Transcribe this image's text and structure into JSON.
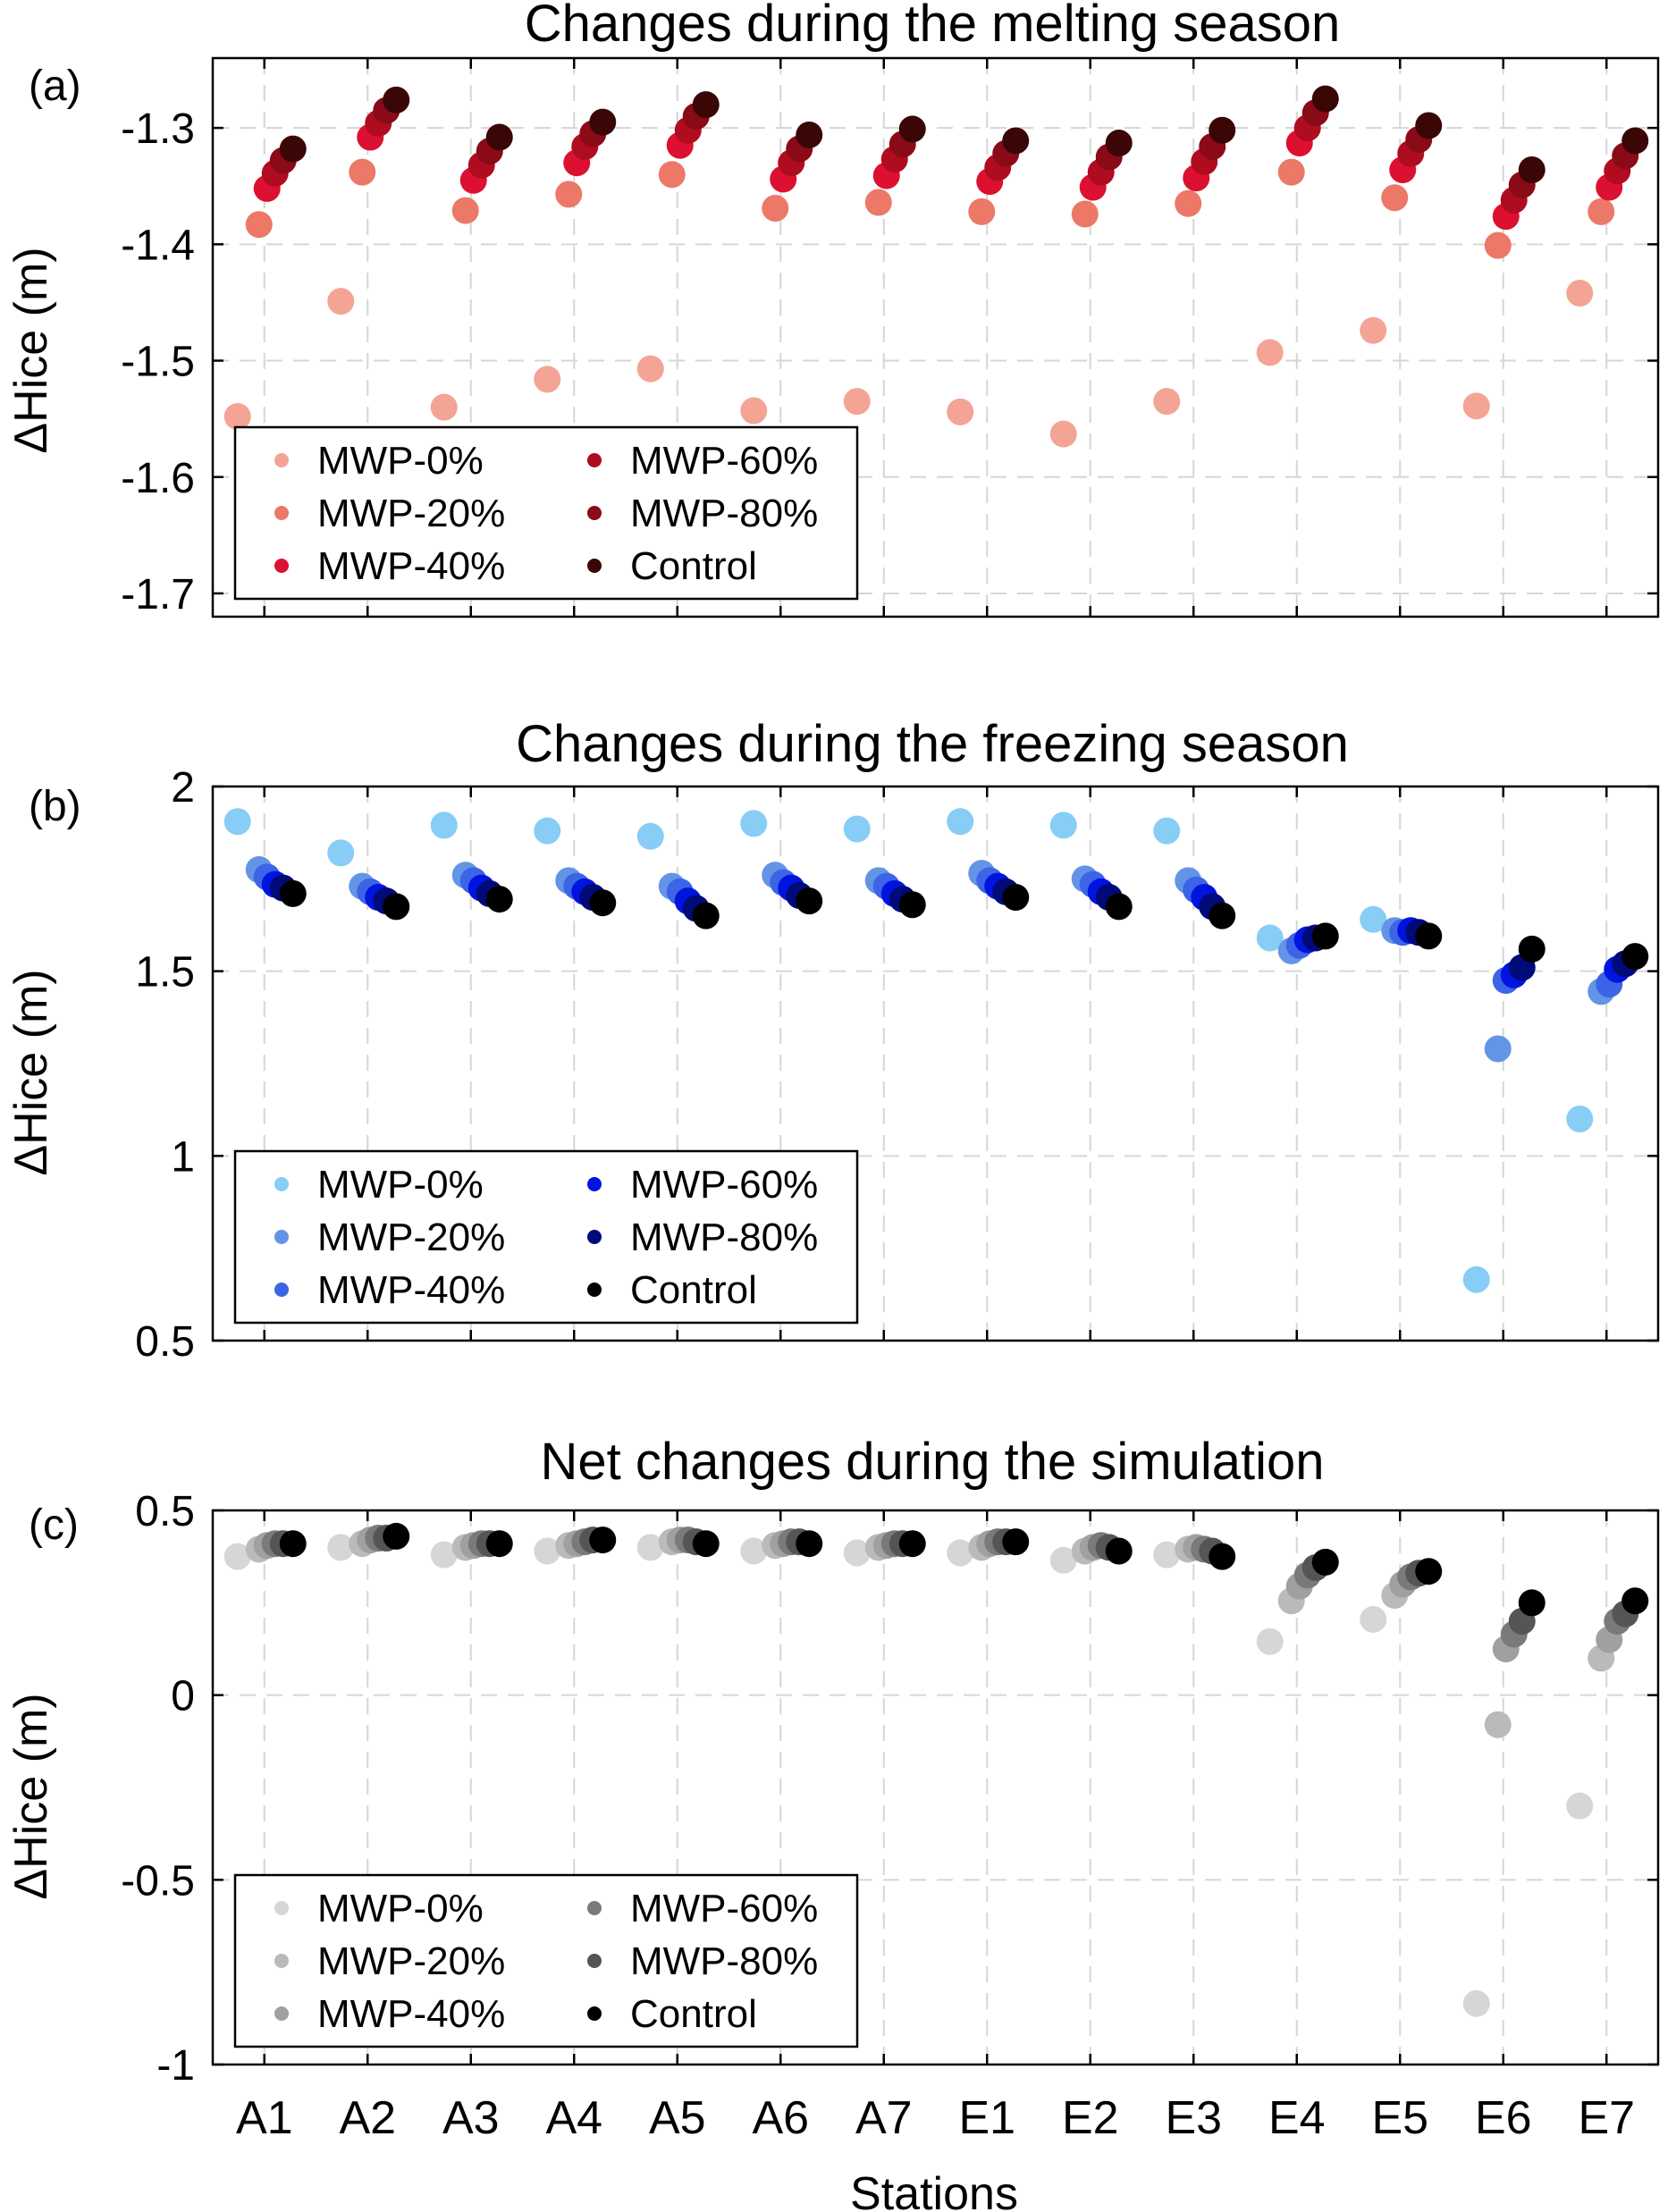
{
  "figure": {
    "xlabel": "Stations",
    "stations": [
      "A1",
      "A2",
      "A3",
      "A4",
      "A5",
      "A6",
      "A7",
      "E1",
      "E2",
      "E3",
      "E4",
      "E5",
      "E6",
      "E7"
    ]
  },
  "chart_data": [
    {
      "type": "scatter",
      "panel_label": "(a)",
      "title": "Changes during the melting season",
      "xlabel": "",
      "ylabel": "ΔHice (m)",
      "ylim": [
        -1.72,
        -1.24
      ],
      "yticks": [
        -1.3,
        -1.4,
        -1.5,
        -1.6,
        -1.7
      ],
      "ytick_labels": [
        "-1.3",
        "-1.4",
        "-1.5",
        "-1.6",
        "-1.7"
      ],
      "grid": true,
      "legend_position": "bottom-left",
      "categories": [
        "A1",
        "A2",
        "A3",
        "A4",
        "A5",
        "A6",
        "A7",
        "E1",
        "E2",
        "E3",
        "E4",
        "E5",
        "E6",
        "E7"
      ],
      "series": [
        {
          "name": "MWP-0%",
          "color": "#f4a494",
          "values": [
            -1.548,
            -1.449,
            -1.54,
            -1.516,
            -1.507,
            -1.543,
            -1.535,
            -1.544,
            -1.563,
            -1.535,
            -1.493,
            -1.474,
            -1.539,
            -1.442
          ]
        },
        {
          "name": "MWP-20%",
          "color": "#ec7868",
          "values": [
            -1.383,
            -1.338,
            -1.371,
            -1.357,
            -1.34,
            -1.369,
            -1.364,
            -1.372,
            -1.374,
            -1.365,
            -1.338,
            -1.36,
            -1.401,
            -1.372
          ]
        },
        {
          "name": "MWP-40%",
          "color": "#dc1030",
          "values": [
            -1.352,
            -1.308,
            -1.345,
            -1.33,
            -1.315,
            -1.344,
            -1.341,
            -1.346,
            -1.351,
            -1.343,
            -1.313,
            -1.336,
            -1.376,
            -1.351
          ]
        },
        {
          "name": "MWP-60%",
          "color": "#b00c20",
          "values": [
            -1.339,
            -1.296,
            -1.332,
            -1.316,
            -1.302,
            -1.33,
            -1.327,
            -1.334,
            -1.338,
            -1.329,
            -1.3,
            -1.322,
            -1.362,
            -1.337
          ]
        },
        {
          "name": "MWP-80%",
          "color": "#8a0a18",
          "values": [
            -1.328,
            -1.285,
            -1.32,
            -1.305,
            -1.29,
            -1.318,
            -1.314,
            -1.322,
            -1.325,
            -1.316,
            -1.287,
            -1.31,
            -1.349,
            -1.324
          ]
        },
        {
          "name": "Control",
          "color": "#3a0606",
          "values": [
            -1.318,
            -1.276,
            -1.308,
            -1.295,
            -1.28,
            -1.306,
            -1.301,
            -1.311,
            -1.313,
            -1.302,
            -1.275,
            -1.298,
            -1.336,
            -1.311
          ]
        }
      ]
    },
    {
      "type": "scatter",
      "panel_label": "(b)",
      "title": "Changes during the freezing season",
      "xlabel": "",
      "ylabel": "ΔHice (m)",
      "ylim": [
        0.5,
        2.0
      ],
      "yticks": [
        2.0,
        1.5,
        1.0,
        0.5
      ],
      "ytick_labels": [
        "2",
        "1.5",
        "1",
        "0.5"
      ],
      "grid": true,
      "legend_position": "bottom-left",
      "categories": [
        "A1",
        "A2",
        "A3",
        "A4",
        "A5",
        "A6",
        "A7",
        "E1",
        "E2",
        "E3",
        "E4",
        "E5",
        "E6",
        "E7"
      ],
      "series": [
        {
          "name": "MWP-0%",
          "color": "#87cdf6",
          "values": [
            1.905,
            1.82,
            1.895,
            1.88,
            1.865,
            1.9,
            1.885,
            1.905,
            1.895,
            1.88,
            1.59,
            1.64,
            0.665,
            1.1
          ]
        },
        {
          "name": "MWP-20%",
          "color": "#6494e6",
          "values": [
            1.775,
            1.73,
            1.76,
            1.745,
            1.73,
            1.76,
            1.745,
            1.765,
            1.75,
            1.745,
            1.555,
            1.61,
            1.29,
            1.445
          ]
        },
        {
          "name": "MWP-40%",
          "color": "#3c64e6",
          "values": [
            1.755,
            1.715,
            1.745,
            1.73,
            1.715,
            1.74,
            1.73,
            1.745,
            1.735,
            1.72,
            1.57,
            1.605,
            1.475,
            1.465
          ]
        },
        {
          "name": "MWP-60%",
          "color": "#0014e0",
          "values": [
            1.735,
            1.7,
            1.725,
            1.715,
            1.69,
            1.725,
            1.71,
            1.73,
            1.715,
            1.7,
            1.585,
            1.61,
            1.49,
            1.505
          ]
        },
        {
          "name": "MWP-80%",
          "color": "#000a78",
          "values": [
            1.725,
            1.69,
            1.71,
            1.7,
            1.67,
            1.705,
            1.695,
            1.715,
            1.7,
            1.675,
            1.59,
            1.605,
            1.51,
            1.52
          ]
        },
        {
          "name": "Control",
          "color": "#000000",
          "values": [
            1.71,
            1.675,
            1.695,
            1.685,
            1.65,
            1.69,
            1.68,
            1.7,
            1.675,
            1.65,
            1.595,
            1.595,
            1.56,
            1.54
          ]
        }
      ]
    },
    {
      "type": "scatter",
      "panel_label": "(c)",
      "title": "Net changes during the simulation",
      "xlabel": "Stations",
      "ylabel": "ΔHice (m)",
      "ylim": [
        -1.0,
        0.5
      ],
      "yticks": [
        0.5,
        0,
        -0.5,
        -1
      ],
      "ytick_labels": [
        "0.5",
        "0",
        "-0.5",
        "-1"
      ],
      "grid": true,
      "legend_position": "bottom-left",
      "categories": [
        "A1",
        "A2",
        "A3",
        "A4",
        "A5",
        "A6",
        "A7",
        "E1",
        "E2",
        "E3",
        "E4",
        "E5",
        "E6",
        "E7"
      ],
      "series": [
        {
          "name": "MWP-0%",
          "color": "#d6d6d6",
          "values": [
            0.375,
            0.4,
            0.38,
            0.39,
            0.4,
            0.39,
            0.385,
            0.385,
            0.365,
            0.38,
            0.145,
            0.205,
            -0.835,
            -0.3
          ]
        },
        {
          "name": "MWP-20%",
          "color": "#bababa",
          "values": [
            0.395,
            0.41,
            0.4,
            0.405,
            0.415,
            0.405,
            0.4,
            0.4,
            0.39,
            0.395,
            0.255,
            0.27,
            -0.08,
            0.1
          ]
        },
        {
          "name": "MWP-40%",
          "color": "#a0a0a0",
          "values": [
            0.405,
            0.42,
            0.405,
            0.41,
            0.42,
            0.41,
            0.405,
            0.41,
            0.4,
            0.4,
            0.295,
            0.3,
            0.125,
            0.15
          ]
        },
        {
          "name": "MWP-60%",
          "color": "#7a7a7a",
          "values": [
            0.41,
            0.425,
            0.41,
            0.415,
            0.42,
            0.415,
            0.41,
            0.415,
            0.405,
            0.395,
            0.325,
            0.32,
            0.165,
            0.2
          ]
        },
        {
          "name": "MWP-80%",
          "color": "#555555",
          "values": [
            0.41,
            0.425,
            0.41,
            0.42,
            0.415,
            0.415,
            0.41,
            0.415,
            0.4,
            0.39,
            0.345,
            0.33,
            0.2,
            0.22
          ]
        },
        {
          "name": "Control",
          "color": "#000000",
          "values": [
            0.41,
            0.43,
            0.41,
            0.42,
            0.41,
            0.41,
            0.41,
            0.415,
            0.39,
            0.375,
            0.36,
            0.335,
            0.25,
            0.255
          ]
        }
      ]
    }
  ]
}
